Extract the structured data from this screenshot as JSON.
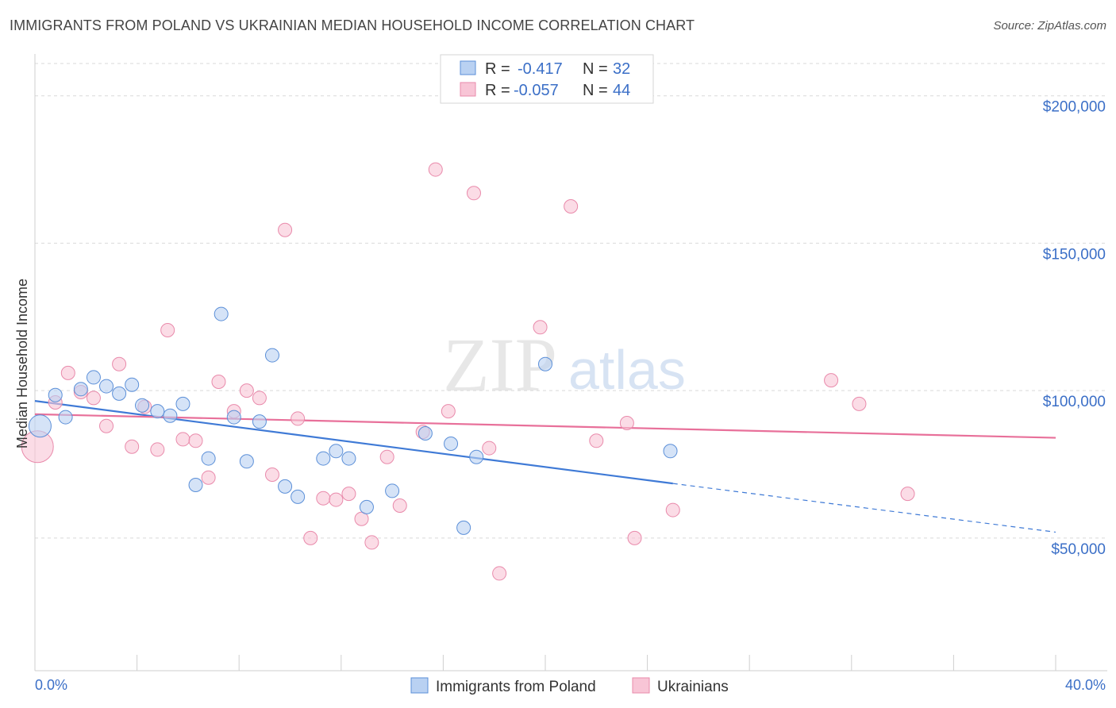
{
  "title": "IMMIGRANTS FROM POLAND VS UKRAINIAN MEDIAN HOUSEHOLD INCOME CORRELATION CHART",
  "source": "Source: ZipAtlas.com",
  "watermark": {
    "zip": "ZIP",
    "atlas": "atlas"
  },
  "colors": {
    "blue": "#3f7ad6",
    "blue_fill": "#b9d1f2",
    "blue_stroke": "#5b8fd8",
    "pink": "#e8709a",
    "pink_fill": "#f8c5d6",
    "pink_stroke": "#e98aab",
    "grid": "#d9d9d9",
    "tick_label": "#3b6fc7"
  },
  "legend": {
    "rows": [
      {
        "r_label": "R =",
        "r_value": "-0.417",
        "n_label": "N =",
        "n_value": "32"
      },
      {
        "r_label": "R =",
        "r_value": "-0.057",
        "n_label": "N =",
        "n_value": "44"
      }
    ]
  },
  "chart_data": {
    "type": "scatter",
    "title": "IMMIGRANTS FROM POLAND VS UKRAINIAN MEDIAN HOUSEHOLD INCOME CORRELATION CHART",
    "xlabel": "",
    "ylabel": "Median Household Income",
    "xlim": [
      0,
      40
    ],
    "ylim": [
      5000,
      215000
    ],
    "x_tick_labels": [
      "0.0%",
      "40.0%"
    ],
    "y_tick_values": [
      50000,
      100000,
      150000,
      200000
    ],
    "y_tick_labels": [
      "$50,000",
      "$100,000",
      "$150,000",
      "$200,000"
    ],
    "grid": true,
    "legend_position": "bottom",
    "series": [
      {
        "name": "Immigrants from Poland",
        "color": "#3f7ad6",
        "points": [
          [
            0.2,
            88000
          ],
          [
            0.8,
            98500
          ],
          [
            1.2,
            91000
          ],
          [
            1.8,
            100500
          ],
          [
            2.3,
            104500
          ],
          [
            2.8,
            101500
          ],
          [
            3.3,
            99000
          ],
          [
            3.8,
            102000
          ],
          [
            4.2,
            95000
          ],
          [
            4.8,
            93000
          ],
          [
            5.3,
            91500
          ],
          [
            5.8,
            95500
          ],
          [
            6.3,
            68000
          ],
          [
            6.8,
            77000
          ],
          [
            7.3,
            126000
          ],
          [
            7.8,
            91000
          ],
          [
            8.3,
            76000
          ],
          [
            8.8,
            89500
          ],
          [
            9.3,
            112000
          ],
          [
            9.8,
            67500
          ],
          [
            10.3,
            64000
          ],
          [
            11.3,
            77000
          ],
          [
            11.8,
            79500
          ],
          [
            12.3,
            77000
          ],
          [
            13.0,
            60500
          ],
          [
            14.0,
            66000
          ],
          [
            15.3,
            85500
          ],
          [
            16.3,
            82000
          ],
          [
            16.8,
            53500
          ],
          [
            17.3,
            77500
          ],
          [
            20.0,
            109000
          ],
          [
            24.9,
            79500
          ]
        ],
        "trend": {
          "x": [
            0,
            25
          ],
          "y": [
            96500,
            68500
          ]
        },
        "trend_dashed": {
          "x": [
            25,
            40
          ],
          "y": [
            68500,
            52000
          ]
        }
      },
      {
        "name": "Ukrainians",
        "color": "#e8709a",
        "points": [
          [
            0.1,
            81000
          ],
          [
            0.8,
            96000
          ],
          [
            1.3,
            106000
          ],
          [
            1.8,
            99500
          ],
          [
            2.3,
            97500
          ],
          [
            2.8,
            88000
          ],
          [
            3.3,
            109000
          ],
          [
            3.8,
            81000
          ],
          [
            4.3,
            94500
          ],
          [
            4.8,
            80000
          ],
          [
            5.2,
            120500
          ],
          [
            5.8,
            83500
          ],
          [
            6.3,
            83000
          ],
          [
            6.8,
            70500
          ],
          [
            7.2,
            103000
          ],
          [
            7.8,
            93000
          ],
          [
            8.3,
            100000
          ],
          [
            8.8,
            97500
          ],
          [
            9.3,
            71500
          ],
          [
            9.8,
            154500
          ],
          [
            10.3,
            90500
          ],
          [
            10.8,
            50000
          ],
          [
            11.3,
            63500
          ],
          [
            11.8,
            63000
          ],
          [
            12.3,
            65000
          ],
          [
            12.8,
            56500
          ],
          [
            13.2,
            48500
          ],
          [
            13.8,
            77500
          ],
          [
            14.3,
            61000
          ],
          [
            15.2,
            86000
          ],
          [
            15.7,
            175000
          ],
          [
            16.2,
            93000
          ],
          [
            17.2,
            167000
          ],
          [
            17.8,
            80500
          ],
          [
            18.2,
            38000
          ],
          [
            19.8,
            121500
          ],
          [
            21.0,
            162500
          ],
          [
            22.0,
            83000
          ],
          [
            23.2,
            89000
          ],
          [
            23.5,
            50000
          ],
          [
            25.0,
            59500
          ],
          [
            31.2,
            103500
          ],
          [
            32.3,
            95500
          ],
          [
            34.2,
            65000
          ]
        ],
        "trend": {
          "x": [
            0,
            40
          ],
          "y": [
            92000,
            84000
          ]
        }
      }
    ]
  }
}
